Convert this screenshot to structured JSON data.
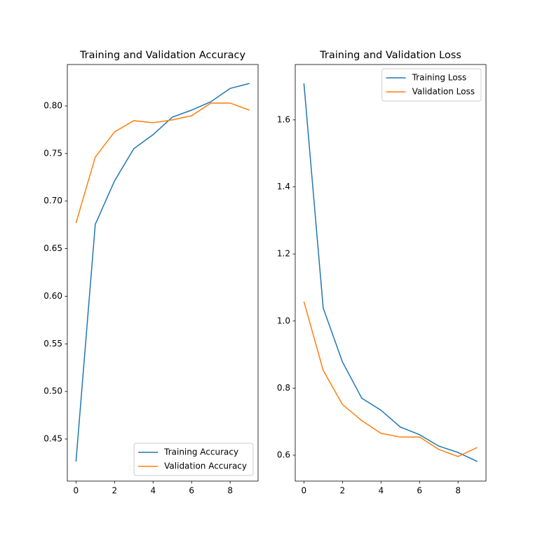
{
  "chart_data": [
    {
      "type": "line",
      "title": "Training and Validation Accuracy",
      "x": [
        0,
        1,
        2,
        3,
        4,
        5,
        6,
        7,
        8,
        9
      ],
      "series": [
        {
          "name": "Training Accuracy",
          "color": "#1f77b4",
          "values": [
            0.4264,
            0.6755,
            0.7212,
            0.7551,
            0.7698,
            0.7882,
            0.7956,
            0.8044,
            0.8184,
            0.8236
          ]
        },
        {
          "name": "Validation Accuracy",
          "color": "#ff7f0e",
          "values": [
            0.677,
            0.7462,
            0.7727,
            0.7845,
            0.7823,
            0.7853,
            0.7897,
            0.803,
            0.803,
            0.7956
          ]
        }
      ],
      "xlim": [
        -0.45,
        9.45
      ],
      "xticks": [
        0,
        2,
        4,
        6,
        8
      ],
      "ylim": [
        0.4058,
        0.8435
      ],
      "yticks": [
        0.45,
        {
          "value": 0.5,
          "label": "0.50"
        },
        0.55,
        {
          "value": 0.6,
          "label": "0.60"
        },
        0.65,
        {
          "value": 0.7,
          "label": "0.70"
        },
        0.75,
        {
          "value": 0.8,
          "label": "0.80"
        }
      ],
      "legend": "lower right"
    },
    {
      "type": "line",
      "title": "Training and Validation Loss",
      "x": [
        0,
        1,
        2,
        3,
        4,
        5,
        6,
        7,
        8,
        9
      ],
      "series": [
        {
          "name": "Training Loss",
          "color": "#1f77b4",
          "values": [
            1.709,
            1.039,
            0.878,
            0.77,
            0.734,
            0.684,
            0.661,
            0.627,
            0.608,
            0.581
          ]
        },
        {
          "name": "Validation Loss",
          "color": "#ff7f0e",
          "values": [
            1.058,
            0.853,
            0.751,
            0.703,
            0.665,
            0.654,
            0.654,
            0.617,
            0.596,
            0.623
          ]
        }
      ],
      "xlim": [
        -0.45,
        9.45
      ],
      "xticks": [
        0,
        2,
        4,
        6,
        8
      ],
      "ylim": [
        0.5226,
        1.765
      ],
      "yticks": [
        0.6,
        0.8,
        {
          "value": 1,
          "label": "1.0"
        },
        1.2,
        1.4,
        1.6
      ],
      "legend": "upper right"
    }
  ]
}
